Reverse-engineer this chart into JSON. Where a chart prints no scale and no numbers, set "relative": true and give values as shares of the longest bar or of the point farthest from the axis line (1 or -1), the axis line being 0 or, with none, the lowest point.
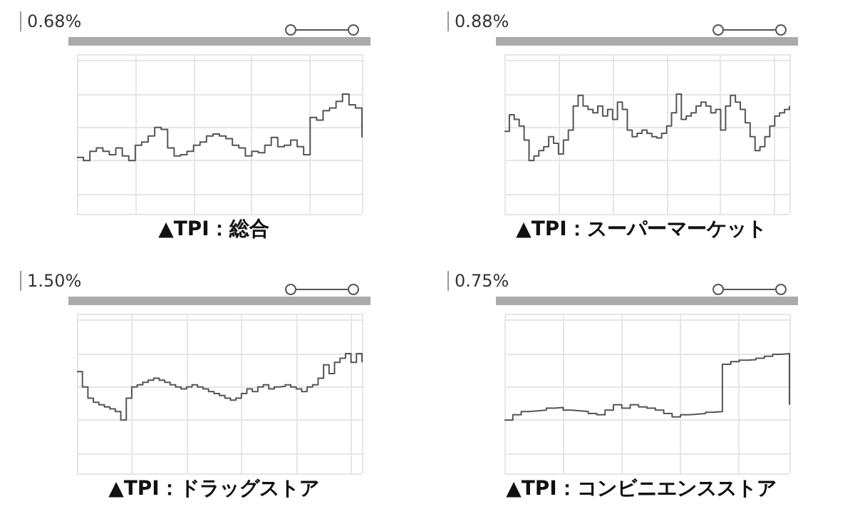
{
  "chart_data": [
    {
      "type": "step",
      "title": "▲TPI：総合",
      "annotations": [
        "0.68%"
      ],
      "relative": true,
      "grid": true,
      "color": "#555555",
      "categories": [
        null,
        null,
        null,
        null,
        null,
        null,
        null,
        null,
        null,
        null,
        null,
        null,
        null,
        null,
        null,
        null,
        null,
        null,
        null,
        null,
        null,
        null,
        null,
        null,
        null,
        null,
        null,
        null,
        null,
        null,
        null,
        null,
        null,
        null,
        null,
        null,
        null,
        null,
        null,
        null,
        null,
        null,
        null,
        null,
        null
      ],
      "values": [
        0.05,
        0,
        0.14,
        0.19,
        0.14,
        0.09,
        0.19,
        0.07,
        0,
        0.23,
        0.28,
        0.37,
        0.5,
        0.47,
        0.19,
        0.07,
        0.09,
        0.14,
        0.23,
        0.28,
        0.37,
        0.4,
        0.37,
        0.33,
        0.23,
        0.19,
        0.07,
        0.14,
        0.12,
        0.23,
        0.35,
        0.21,
        0.23,
        0.31,
        0.21,
        0.09,
        0.65,
        0.61,
        0.75,
        0.79,
        0.89,
        1,
        0.84,
        0.79,
        0.35
      ]
    },
    {
      "type": "step",
      "title": "▲TPI：スーパーマーケット",
      "annotations": [
        "0.88%"
      ],
      "relative": true,
      "grid": true,
      "color": "#555555",
      "categories": [
        null,
        null,
        null,
        null,
        null,
        null,
        null,
        null,
        null,
        null,
        null,
        null,
        null,
        null,
        null,
        null,
        null,
        null,
        null,
        null,
        null,
        null,
        null,
        null,
        null,
        null,
        null,
        null,
        null,
        null,
        null,
        null,
        null,
        null,
        null,
        null,
        null,
        null,
        null,
        null,
        null,
        null,
        null,
        null,
        null,
        null,
        null,
        null,
        null,
        null,
        null,
        null,
        null,
        null,
        null,
        null,
        null,
        null,
        null
      ],
      "values": [
        0.44,
        0.69,
        0.62,
        0.52,
        0.31,
        0,
        0.07,
        0.15,
        0.21,
        0.36,
        0.26,
        0.1,
        0.31,
        0.46,
        0.82,
        0.98,
        0.82,
        0.77,
        0.72,
        0.82,
        0.67,
        0.77,
        0.62,
        0.88,
        0.77,
        0.46,
        0.36,
        0.41,
        0.46,
        0.41,
        0.36,
        0.34,
        0.41,
        0.52,
        0.72,
        1,
        0.62,
        0.67,
        0.72,
        0.82,
        0.88,
        0.82,
        0.72,
        0.77,
        0.46,
        0.82,
        0.98,
        0.88,
        0.77,
        0.57,
        0.36,
        0.15,
        0.21,
        0.36,
        0.52,
        0.67,
        0.72,
        0.77,
        0.82
      ]
    },
    {
      "type": "step",
      "title": "▲TPI：ドラッグストア",
      "annotations": [
        "1.50%"
      ],
      "relative": true,
      "grid": true,
      "color": "#555555",
      "categories": [
        null,
        null,
        null,
        null,
        null,
        null,
        null,
        null,
        null,
        null,
        null,
        null,
        null,
        null,
        null,
        null,
        null,
        null,
        null,
        null,
        null,
        null,
        null,
        null,
        null,
        null,
        null,
        null,
        null,
        null,
        null,
        null,
        null,
        null,
        null,
        null,
        null,
        null,
        null,
        null,
        null,
        null,
        null,
        null,
        null,
        null,
        null,
        null,
        null,
        null,
        null,
        null,
        null
      ],
      "values": [
        0.73,
        0.5,
        0.33,
        0.27,
        0.23,
        0.2,
        0.17,
        0.13,
        0,
        0.33,
        0.5,
        0.53,
        0.57,
        0.6,
        0.63,
        0.6,
        0.57,
        0.53,
        0.5,
        0.47,
        0.5,
        0.53,
        0.5,
        0.47,
        0.43,
        0.4,
        0.37,
        0.33,
        0.3,
        0.33,
        0.4,
        0.47,
        0.43,
        0.5,
        0.53,
        0.47,
        0.5,
        0.51,
        0.53,
        0.5,
        0.47,
        0.43,
        0.5,
        0.53,
        0.63,
        0.83,
        0.7,
        0.87,
        0.93,
        1,
        0.87,
        1,
        0.87
      ]
    },
    {
      "type": "step",
      "title": "▲TPI：コンビニエンスストア",
      "annotations": [
        "0.75%"
      ],
      "relative": true,
      "grid": true,
      "color": "#555555",
      "categories": [
        null,
        null,
        null,
        null,
        null,
        null,
        null,
        null,
        null,
        null,
        null,
        null,
        null,
        null,
        null,
        null,
        null,
        null,
        null,
        null,
        null,
        null,
        null,
        null,
        null,
        null,
        null,
        null,
        null,
        null,
        null,
        null,
        null,
        null,
        null
      ],
      "values": [
        0,
        0.08,
        0.13,
        0.14,
        0.15,
        0.18,
        0.19,
        0.15,
        0.14,
        0.13,
        0.1,
        0.08,
        0.15,
        0.23,
        0.18,
        0.23,
        0.2,
        0.18,
        0.15,
        0.1,
        0.05,
        0.08,
        0.09,
        0.1,
        0.12,
        0.13,
        0.84,
        0.88,
        0.9,
        0.91,
        0.93,
        0.96,
        0.99,
        1,
        0.23
      ]
    }
  ]
}
